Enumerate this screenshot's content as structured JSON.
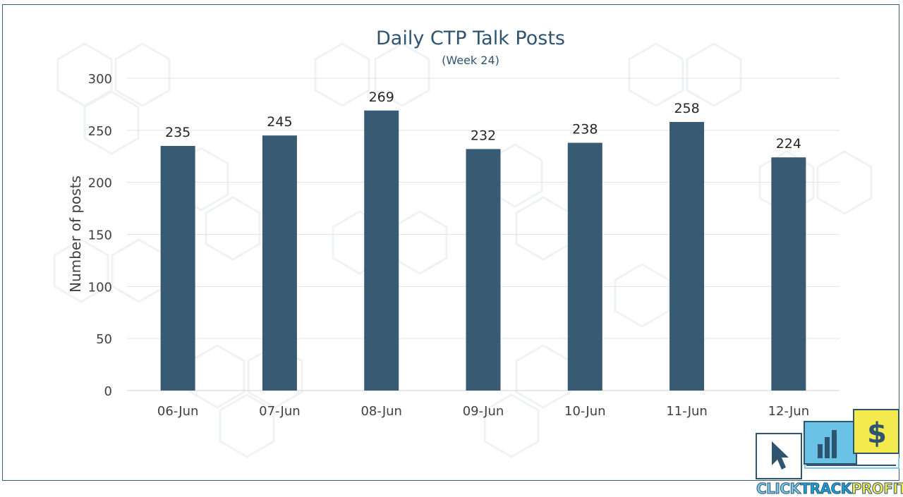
{
  "chart_data": {
    "type": "bar",
    "title": "Daily CTP Talk Posts",
    "subtitle": "(Week 24)",
    "ylabel": "Number of posts",
    "xlabel": "",
    "categories": [
      "06-Jun",
      "07-Jun",
      "08-Jun",
      "09-Jun",
      "10-Jun",
      "11-Jun",
      "12-Jun"
    ],
    "values": [
      235,
      245,
      269,
      232,
      238,
      258,
      224
    ],
    "yticks": [
      0,
      50,
      100,
      150,
      200,
      250,
      300
    ],
    "ylim": [
      0,
      300
    ],
    "grid": true,
    "legend": "none",
    "bar_color": "#385a73",
    "data_labels": true
  },
  "logo": {
    "text_part1": "CLICK",
    "text_part2": "TRACK",
    "text_part3": "PROFIT",
    "dollar_glyph": "$",
    "colors": {
      "light_blue": "#7fc9e8",
      "blue": "#1aa0d8",
      "yellow": "#f4ea4e",
      "navy": "#2f5470"
    }
  }
}
